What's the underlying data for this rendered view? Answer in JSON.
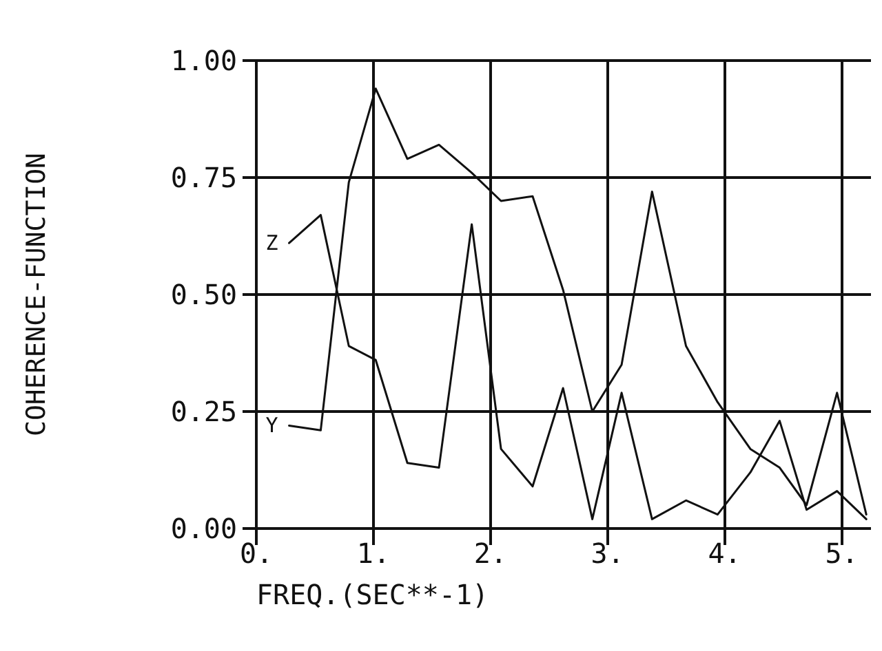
{
  "chart_data": {
    "type": "line",
    "xlabel": "FREQ.(SEC**-1)",
    "ylabel": "COHERENCE-FUNCTION",
    "x": [
      0.28,
      0.55,
      0.79,
      1.02,
      1.29,
      1.56,
      1.84,
      2.09,
      2.36,
      2.62,
      2.87,
      3.12,
      3.38,
      3.67,
      3.94,
      4.22,
      4.47,
      4.7,
      4.96,
      5.21
    ],
    "series": [
      {
        "name": "Y",
        "color": "#111111",
        "values": [
          0.22,
          0.21,
          0.74,
          0.94,
          0.79,
          0.82,
          0.76,
          0.7,
          0.71,
          0.51,
          0.25,
          0.35,
          0.72,
          0.39,
          0.27,
          0.17,
          0.13,
          0.05,
          0.29,
          0.03
        ]
      },
      {
        "name": "Z",
        "color": "#111111",
        "values": [
          0.61,
          0.67,
          0.39,
          0.36,
          0.14,
          0.13,
          0.65,
          0.17,
          0.09,
          0.3,
          0.02,
          0.29,
          0.02,
          0.06,
          0.03,
          0.12,
          0.23,
          0.04,
          0.08,
          0.02
        ]
      }
    ],
    "xlim": [
      0,
      5.25
    ],
    "xticks": [
      {
        "value": 0,
        "label": "0."
      },
      {
        "value": 1,
        "label": "1."
      },
      {
        "value": 2,
        "label": "2."
      },
      {
        "value": 3,
        "label": "3."
      },
      {
        "value": 4,
        "label": "4."
      },
      {
        "value": 5,
        "label": "5."
      }
    ],
    "ylim": [
      0,
      1
    ],
    "yticks": [
      {
        "value": 0,
        "label": "0.00"
      },
      {
        "value": 0.25,
        "label": "0.25"
      },
      {
        "value": 0.5,
        "label": "0.50"
      },
      {
        "value": 0.75,
        "label": "0.75"
      },
      {
        "value": 1,
        "label": "1.00"
      }
    ],
    "grid": true,
    "marker": "none",
    "line_style": "solid"
  }
}
